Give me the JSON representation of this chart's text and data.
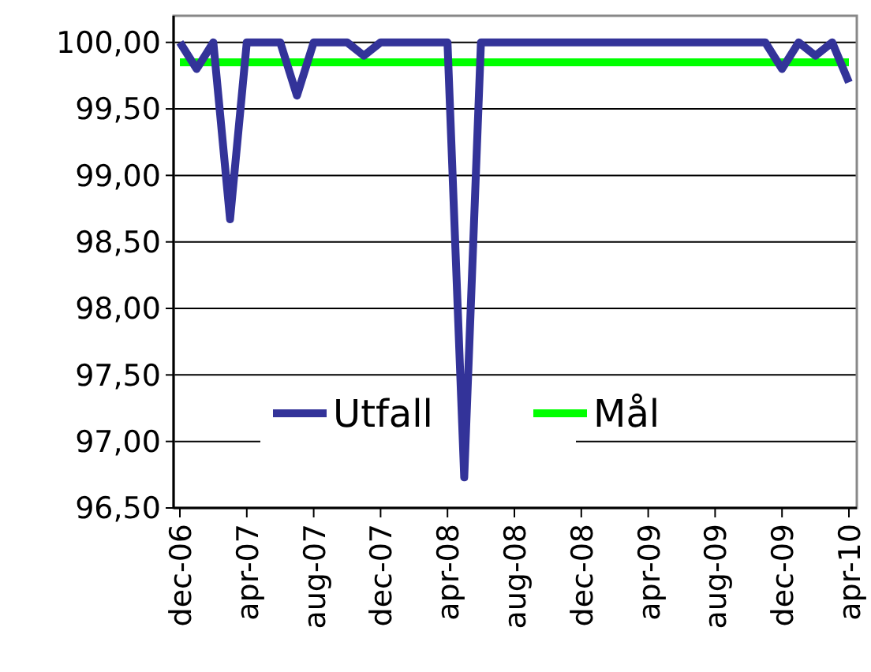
{
  "chart_data": {
    "type": "line",
    "categories": [
      "dec-06",
      null,
      null,
      null,
      "apr-07",
      null,
      null,
      null,
      "aug-07",
      null,
      null,
      null,
      "dec-07",
      null,
      null,
      null,
      "apr-08",
      null,
      null,
      null,
      "aug-08",
      null,
      null,
      null,
      "dec-08",
      null,
      null,
      null,
      "apr-09",
      null,
      null,
      null,
      "aug-09",
      null,
      null,
      null,
      "dec-09",
      null,
      null,
      null,
      "apr-10"
    ],
    "series": [
      {
        "name": "Utfall",
        "color": "#333399",
        "values": [
          100,
          99.8,
          100,
          98.67,
          100,
          100,
          100,
          99.6,
          100,
          100,
          100,
          99.9,
          100,
          100,
          100,
          100,
          100,
          96.73,
          100,
          100,
          100,
          100,
          100,
          100,
          100,
          100,
          100,
          100,
          100,
          100,
          100,
          100,
          100,
          100,
          100,
          100,
          99.8,
          100,
          99.9,
          100,
          99.7
        ]
      },
      {
        "name": "Mål",
        "color": "#00ff00",
        "values": [
          99.85,
          99.85,
          99.85,
          99.85,
          99.85,
          99.85,
          99.85,
          99.85,
          99.85,
          99.85,
          99.85,
          99.85,
          99.85,
          99.85,
          99.85,
          99.85,
          99.85,
          99.85,
          99.85,
          99.85,
          99.85,
          99.85,
          99.85,
          99.85,
          99.85,
          99.85,
          99.85,
          99.85,
          99.85,
          99.85,
          99.85,
          99.85,
          99.85,
          99.85,
          99.85,
          99.85,
          99.85,
          99.85,
          99.85,
          99.85,
          99.85
        ]
      }
    ],
    "ylim": [
      96.5,
      100.2
    ],
    "yticks": [
      {
        "value": 96.5,
        "label": "96,50"
      },
      {
        "value": 97,
        "label": "97,00"
      },
      {
        "value": 97.5,
        "label": "97,50"
      },
      {
        "value": 98,
        "label": "98,00"
      },
      {
        "value": 98.5,
        "label": "98,50"
      },
      {
        "value": 99,
        "label": "99,00"
      },
      {
        "value": 99.5,
        "label": "99,50"
      },
      {
        "value": 100,
        "label": "100,00"
      }
    ],
    "grid": "y",
    "legend": "bottom",
    "marker": "none",
    "line_style": "solid"
  }
}
